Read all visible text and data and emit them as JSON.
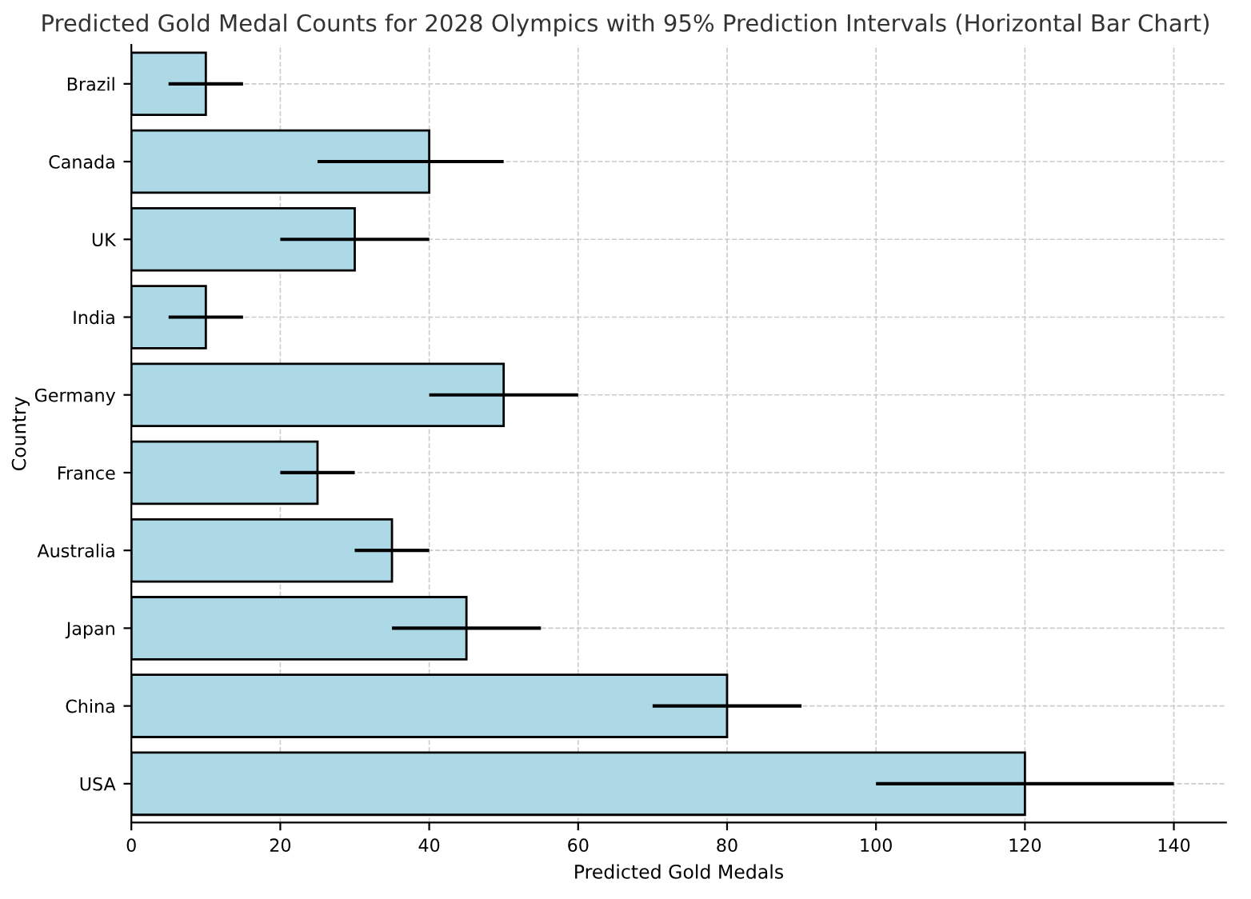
{
  "chart_data": {
    "type": "bar",
    "orientation": "horizontal",
    "title": "Predicted Gold Medal Counts for 2028 Olympics with 95% Prediction Intervals (Horizontal Bar Chart)",
    "xlabel": "Predicted Gold Medals",
    "ylabel": "Country",
    "categories": [
      "Brazil",
      "Canada",
      "UK",
      "India",
      "Germany",
      "France",
      "Australia",
      "Japan",
      "China",
      "USA"
    ],
    "values": [
      10,
      40,
      30,
      10,
      50,
      25,
      35,
      45,
      80,
      120
    ],
    "errors": [
      [
        5,
        15
      ],
      [
        25,
        50
      ],
      [
        20,
        40
      ],
      [
        5,
        15
      ],
      [
        40,
        60
      ],
      [
        20,
        30
      ],
      [
        30,
        40
      ],
      [
        35,
        55
      ],
      [
        70,
        90
      ],
      [
        100,
        140
      ]
    ],
    "color": "#add8e6",
    "xlim": [
      0,
      147
    ],
    "xticks": [
      0,
      20,
      40,
      60,
      80,
      100,
      120,
      140
    ],
    "grid": true
  }
}
